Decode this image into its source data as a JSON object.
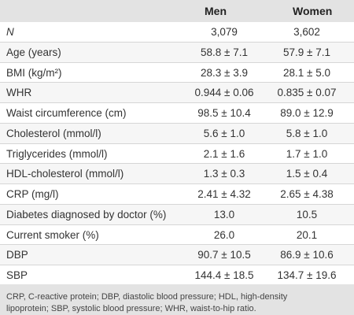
{
  "table": {
    "headers": {
      "men": "Men",
      "women": "Women"
    },
    "rows": [
      {
        "label": "N",
        "men": "3,079",
        "women": "3,602"
      },
      {
        "label": "Age (years)",
        "men": "58.8 ± 7.1",
        "women": "57.9 ± 7.1"
      },
      {
        "label": "BMI (kg/m²)",
        "men": "28.3 ± 3.9",
        "women": "28.1 ± 5.0"
      },
      {
        "label": "WHR",
        "men": "0.944 ± 0.06",
        "women": "0.835 ± 0.07"
      },
      {
        "label": "Waist circumference (cm)",
        "men": "98.5 ± 10.4",
        "women": "89.0 ± 12.9"
      },
      {
        "label": "Cholesterol (mmol/l)",
        "men": "5.6 ± 1.0",
        "women": "5.8 ± 1.0"
      },
      {
        "label": "Triglycerides (mmol/l)",
        "men": "2.1 ± 1.6",
        "women": "1.7 ± 1.0"
      },
      {
        "label": "HDL-cholesterol (mmol/l)",
        "men": "1.3 ± 0.3",
        "women": "1.5 ± 0.4"
      },
      {
        "label": "CRP (mg/l)",
        "men": "2.41 ± 4.32",
        "women": "2.65 ± 4.38"
      },
      {
        "label": "Diabetes diagnosed by doctor (%)",
        "men": "13.0",
        "women": "10.5"
      },
      {
        "label": "Current smoker (%)",
        "men": "26.0",
        "women": "20.1"
      },
      {
        "label": "DBP",
        "men": "90.7 ± 10.5",
        "women": "86.9 ± 10.6"
      },
      {
        "label": "SBP",
        "men": "144.4 ± 18.5",
        "women": "134.7 ± 19.6"
      }
    ],
    "footnote_line1": "CRP, C-reactive protein; DBP, diastolic blood pressure; HDL, high-density",
    "footnote_line2": "lipoprotein; SBP, systolic blood pressure; WHR, waist-to-hip ratio."
  }
}
